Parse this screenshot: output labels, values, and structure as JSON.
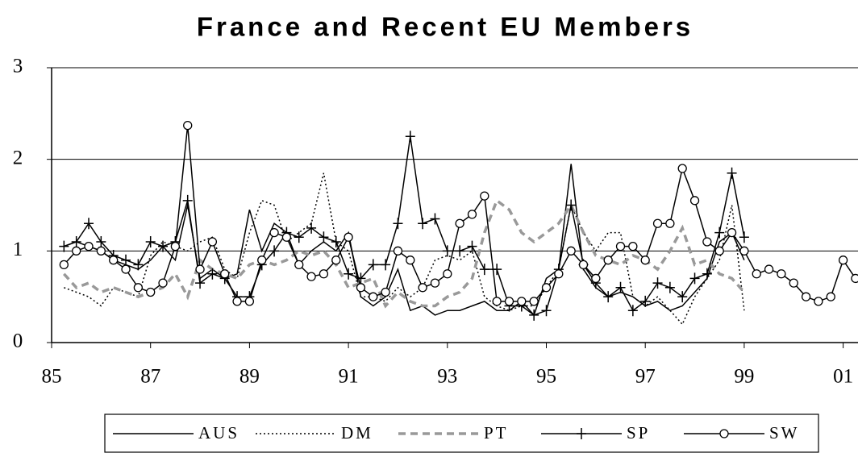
{
  "chart_data": {
    "type": "line",
    "title": "France and Recent EU Members",
    "x": [
      85.25,
      85.5,
      85.75,
      86,
      86.25,
      86.5,
      86.75,
      87,
      87.25,
      87.5,
      87.75,
      88,
      88.25,
      88.5,
      88.75,
      89,
      89.25,
      89.5,
      89.75,
      90,
      90.25,
      90.5,
      90.75,
      91,
      91.25,
      91.5,
      91.75,
      92,
      92.25,
      92.5,
      92.75,
      93,
      93.25,
      93.5,
      93.75,
      94,
      94.25,
      94.5,
      94.75,
      95,
      95.25,
      95.5,
      95.75,
      96,
      96.25,
      96.5,
      96.75,
      97,
      97.25,
      97.5,
      97.75,
      98,
      98.25,
      98.5,
      98.75,
      99,
      99.25,
      99.5,
      99.75,
      100,
      100.25,
      100.5,
      100.75,
      101,
      101.25
    ],
    "series": [
      {
        "name": "AUS",
        "color": "#000000",
        "dash": "none",
        "marker": "none",
        "width": 1.5,
        "values": [
          1.05,
          1.1,
          1.05,
          1.0,
          0.9,
          0.85,
          0.8,
          0.9,
          1.05,
          0.9,
          1.5,
          0.7,
          0.8,
          0.7,
          0.75,
          1.45,
          1.0,
          1.3,
          1.2,
          0.85,
          1.0,
          1.1,
          1.0,
          1.2,
          0.5,
          0.4,
          0.5,
          0.8,
          0.35,
          0.4,
          0.3,
          0.35,
          0.35,
          0.4,
          0.45,
          0.35,
          0.35,
          0.45,
          0.3,
          0.7,
          0.8,
          1.95,
          0.8,
          0.6,
          0.5,
          0.55,
          0.5,
          0.4,
          0.45,
          0.35,
          0.4,
          0.55,
          0.7,
          1.1,
          1.2,
          0.9,
          null,
          null,
          null,
          null,
          null,
          null,
          null,
          null,
          null
        ]
      },
      {
        "name": "DM",
        "color": "#000000",
        "dash": "2,3",
        "marker": "none",
        "width": 1.5,
        "values": [
          0.6,
          0.55,
          0.5,
          0.4,
          0.6,
          0.55,
          0.5,
          0.95,
          1.1,
          1.05,
          1.0,
          1.1,
          1.15,
          0.8,
          0.7,
          1.2,
          1.55,
          1.5,
          1.1,
          1.2,
          1.3,
          1.85,
          1.1,
          1.0,
          0.5,
          0.5,
          0.45,
          0.6,
          0.5,
          0.6,
          0.9,
          0.95,
          0.9,
          1.0,
          0.5,
          0.4,
          0.35,
          0.4,
          0.4,
          0.6,
          0.8,
          1.5,
          1.2,
          1.0,
          1.2,
          1.2,
          0.5,
          0.4,
          0.5,
          0.35,
          0.2,
          0.5,
          0.7,
          0.9,
          1.5,
          0.35,
          null,
          null,
          null,
          null,
          null,
          null,
          null,
          null,
          null
        ]
      },
      {
        "name": "PT",
        "color": "#999999",
        "dash": "9,6",
        "marker": "none",
        "width": 3.5,
        "values": [
          0.75,
          0.6,
          0.65,
          0.55,
          0.6,
          0.55,
          0.5,
          0.55,
          0.6,
          0.75,
          0.5,
          0.9,
          0.8,
          0.75,
          0.7,
          0.85,
          0.9,
          0.85,
          0.9,
          1.0,
          0.95,
          1.0,
          0.85,
          0.6,
          0.65,
          0.7,
          0.4,
          0.55,
          0.45,
          0.4,
          0.4,
          0.5,
          0.55,
          0.7,
          1.2,
          1.55,
          1.45,
          1.2,
          1.1,
          1.2,
          1.3,
          1.5,
          1.2,
          0.95,
          0.9,
          0.85,
          0.95,
          0.9,
          0.8,
          1.0,
          1.25,
          0.85,
          0.9,
          0.75,
          0.7,
          0.55,
          null,
          null,
          null,
          null,
          null,
          null,
          null,
          null,
          null
        ]
      },
      {
        "name": "SP",
        "color": "#000000",
        "dash": "none",
        "marker": "plus",
        "width": 1.5,
        "values": [
          1.05,
          1.1,
          1.3,
          1.1,
          0.95,
          0.9,
          0.85,
          1.1,
          1.05,
          1.1,
          1.55,
          0.65,
          0.75,
          0.7,
          0.5,
          0.5,
          0.85,
          1.0,
          1.2,
          1.15,
          1.25,
          1.15,
          1.1,
          0.75,
          0.7,
          0.85,
          0.85,
          1.3,
          2.25,
          1.3,
          1.35,
          1.0,
          1.0,
          1.05,
          0.8,
          0.8,
          0.4,
          0.4,
          0.3,
          0.35,
          0.8,
          1.5,
          0.85,
          0.65,
          0.5,
          0.6,
          0.35,
          0.45,
          0.65,
          0.6,
          0.5,
          0.7,
          0.75,
          1.2,
          1.85,
          1.15,
          null,
          null,
          null,
          null,
          null,
          null,
          null,
          null,
          null
        ]
      },
      {
        "name": "SW",
        "color": "#000000",
        "dash": "none",
        "marker": "circle",
        "width": 1.5,
        "values": [
          0.85,
          1.0,
          1.05,
          1.0,
          0.9,
          0.8,
          0.6,
          0.55,
          0.65,
          1.05,
          2.37,
          0.8,
          1.1,
          0.75,
          0.45,
          0.45,
          0.9,
          1.2,
          1.15,
          0.85,
          0.72,
          0.75,
          0.9,
          1.15,
          0.6,
          0.5,
          0.55,
          1.0,
          0.9,
          0.6,
          0.65,
          0.75,
          1.3,
          1.4,
          1.6,
          0.45,
          0.45,
          0.45,
          0.45,
          0.6,
          0.75,
          1.0,
          0.85,
          0.7,
          0.9,
          1.05,
          1.05,
          0.9,
          1.3,
          1.3,
          1.9,
          1.55,
          1.1,
          1.0,
          1.2,
          1.0,
          0.75,
          0.8,
          0.75,
          0.65,
          0.5,
          0.45,
          0.5,
          0.9,
          0.7
        ]
      }
    ],
    "xlim": [
      85,
      101.3
    ],
    "xticks": [
      85,
      87,
      89,
      91,
      93,
      95,
      97,
      99,
      {
        "value": 101,
        "label": "01"
      }
    ],
    "ylim": [
      0,
      3
    ],
    "yticks": [
      0,
      1,
      2,
      3
    ],
    "grid": true,
    "legend": "bottom"
  }
}
